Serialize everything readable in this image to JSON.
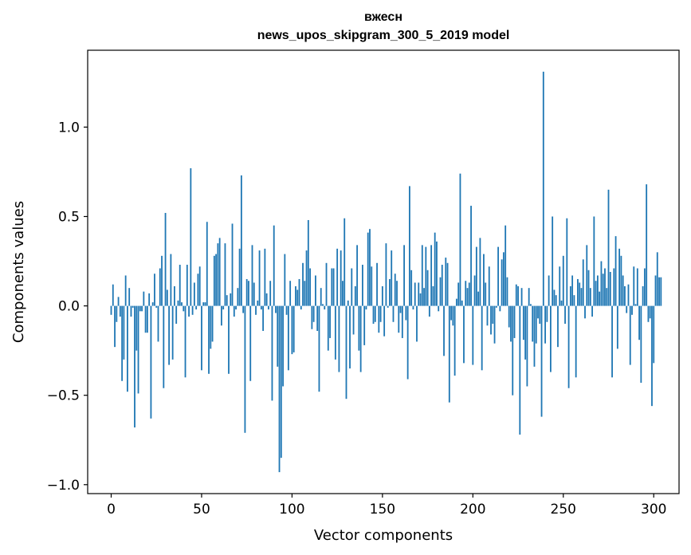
{
  "chart_data": {
    "type": "bar",
    "title": "вжесн",
    "subtitle": "news_upos_skipgram_300_5_2019 model",
    "xlabel": "Vector components",
    "ylabel": "Components values",
    "xlim": [
      -13,
      314
    ],
    "ylim": [
      -1.05,
      1.43
    ],
    "xticks": [
      0,
      50,
      100,
      150,
      200,
      250,
      300
    ],
    "xtick_labels": [
      "0",
      "50",
      "100",
      "150",
      "200",
      "250",
      "300"
    ],
    "yticks": [
      -1.0,
      -0.5,
      0.0,
      0.5,
      1.0
    ],
    "ytick_labels": [
      "−1.0",
      "−0.5",
      "0.0",
      "0.5",
      "1.0"
    ],
    "bar_color": "#1f77b4",
    "grid": false,
    "values": [
      -0.05,
      0.12,
      -0.23,
      -0.09,
      0.05,
      -0.06,
      -0.42,
      -0.3,
      0.17,
      -0.48,
      0.1,
      -0.06,
      -0.01,
      -0.68,
      -0.25,
      -0.49,
      -0.03,
      -0.03,
      0.08,
      -0.15,
      -0.15,
      0.07,
      -0.63,
      0.02,
      0.18,
      -0.01,
      -0.2,
      0.21,
      0.28,
      -0.46,
      0.52,
      0.09,
      -0.33,
      0.29,
      -0.3,
      0.11,
      -0.1,
      0.03,
      0.23,
      0.02,
      -0.03,
      -0.4,
      0.23,
      -0.06,
      0.77,
      -0.05,
      0.13,
      -0.02,
      0.18,
      0.22,
      -0.36,
      0.02,
      0.02,
      0.47,
      -0.38,
      -0.24,
      -0.2,
      0.28,
      0.29,
      0.35,
      0.38,
      -0.11,
      -0.02,
      0.35,
      0.06,
      -0.38,
      0.07,
      0.46,
      -0.06,
      -0.02,
      0.1,
      0.32,
      0.73,
      -0.04,
      -0.71,
      0.15,
      0.14,
      -0.42,
      0.34,
      0.13,
      -0.05,
      0.03,
      0.31,
      -0.02,
      -0.14,
      0.32,
      0.07,
      -0.02,
      0.14,
      -0.53,
      0.45,
      -0.04,
      -0.34,
      -0.93,
      -0.85,
      -0.45,
      0.29,
      -0.05,
      -0.36,
      0.14,
      -0.27,
      -0.26,
      0.11,
      0.09,
      0.15,
      -0.02,
      0.24,
      0.14,
      0.31,
      0.48,
      0.21,
      -0.13,
      -0.09,
      0.17,
      -0.14,
      -0.48,
      0.1,
      0.01,
      -0.02,
      0.24,
      -0.25,
      -0.18,
      0.21,
      0.21,
      -0.3,
      0.32,
      -0.37,
      0.31,
      0.14,
      0.49,
      -0.52,
      0.03,
      -0.35,
      0.21,
      -0.16,
      0.11,
      0.34,
      -0.25,
      -0.37,
      0.23,
      -0.22,
      -0.02,
      0.41,
      0.43,
      0.22,
      -0.1,
      -0.09,
      0.24,
      -0.15,
      -0.09,
      0.11,
      -0.17,
      0.35,
      -0.01,
      0.15,
      0.31,
      -0.09,
      0.18,
      0.14,
      -0.15,
      -0.04,
      -0.18,
      0.34,
      -0.08,
      -0.41,
      0.67,
      0.2,
      -0.02,
      0.13,
      -0.2,
      0.13,
      0.07,
      0.34,
      0.1,
      0.33,
      0.2,
      -0.06,
      0.34,
      0.11,
      0.41,
      0.36,
      -0.03,
      0.16,
      0.23,
      -0.28,
      0.27,
      0.24,
      -0.54,
      -0.08,
      -0.11,
      -0.39,
      0.04,
      0.13,
      0.74,
      0.03,
      -0.32,
      0.14,
      0.1,
      0.13,
      0.56,
      -0.33,
      0.17,
      0.33,
      0.08,
      0.38,
      -0.36,
      0.29,
      0.13,
      -0.11,
      0.22,
      -0.16,
      -0.1,
      -0.21,
      -0.01,
      0.33,
      -0.03,
      0.26,
      0.3,
      0.45,
      0.16,
      -0.12,
      -0.2,
      -0.5,
      -0.18,
      0.12,
      0.11,
      -0.72,
      0.1,
      -0.19,
      -0.3,
      -0.45,
      0.1,
      0.01,
      -0.2,
      -0.34,
      -0.21,
      -0.07,
      -0.1,
      -0.62,
      1.31,
      -0.21,
      -0.09,
      0.17,
      -0.37,
      0.5,
      0.09,
      0.06,
      -0.23,
      0.22,
      0.03,
      0.28,
      -0.1,
      0.49,
      -0.46,
      0.11,
      0.17,
      0.06,
      -0.4,
      0.15,
      0.13,
      0.1,
      0.26,
      -0.07,
      0.34,
      0.2,
      0.1,
      -0.06,
      0.5,
      0.14,
      0.17,
      0.08,
      0.25,
      0.18,
      0.21,
      0.1,
      0.65,
      0.19,
      -0.4,
      0.21,
      0.39,
      -0.24,
      0.32,
      0.28,
      0.17,
      0.11,
      -0.04,
      0.12,
      -0.33,
      -0.05,
      0.22,
      0.01,
      0.21,
      -0.19,
      -0.43,
      0.11,
      0.21,
      0.68,
      -0.09,
      -0.07,
      -0.56,
      -0.32,
      0.17,
      0.3,
      0.16,
      0.16
    ]
  }
}
